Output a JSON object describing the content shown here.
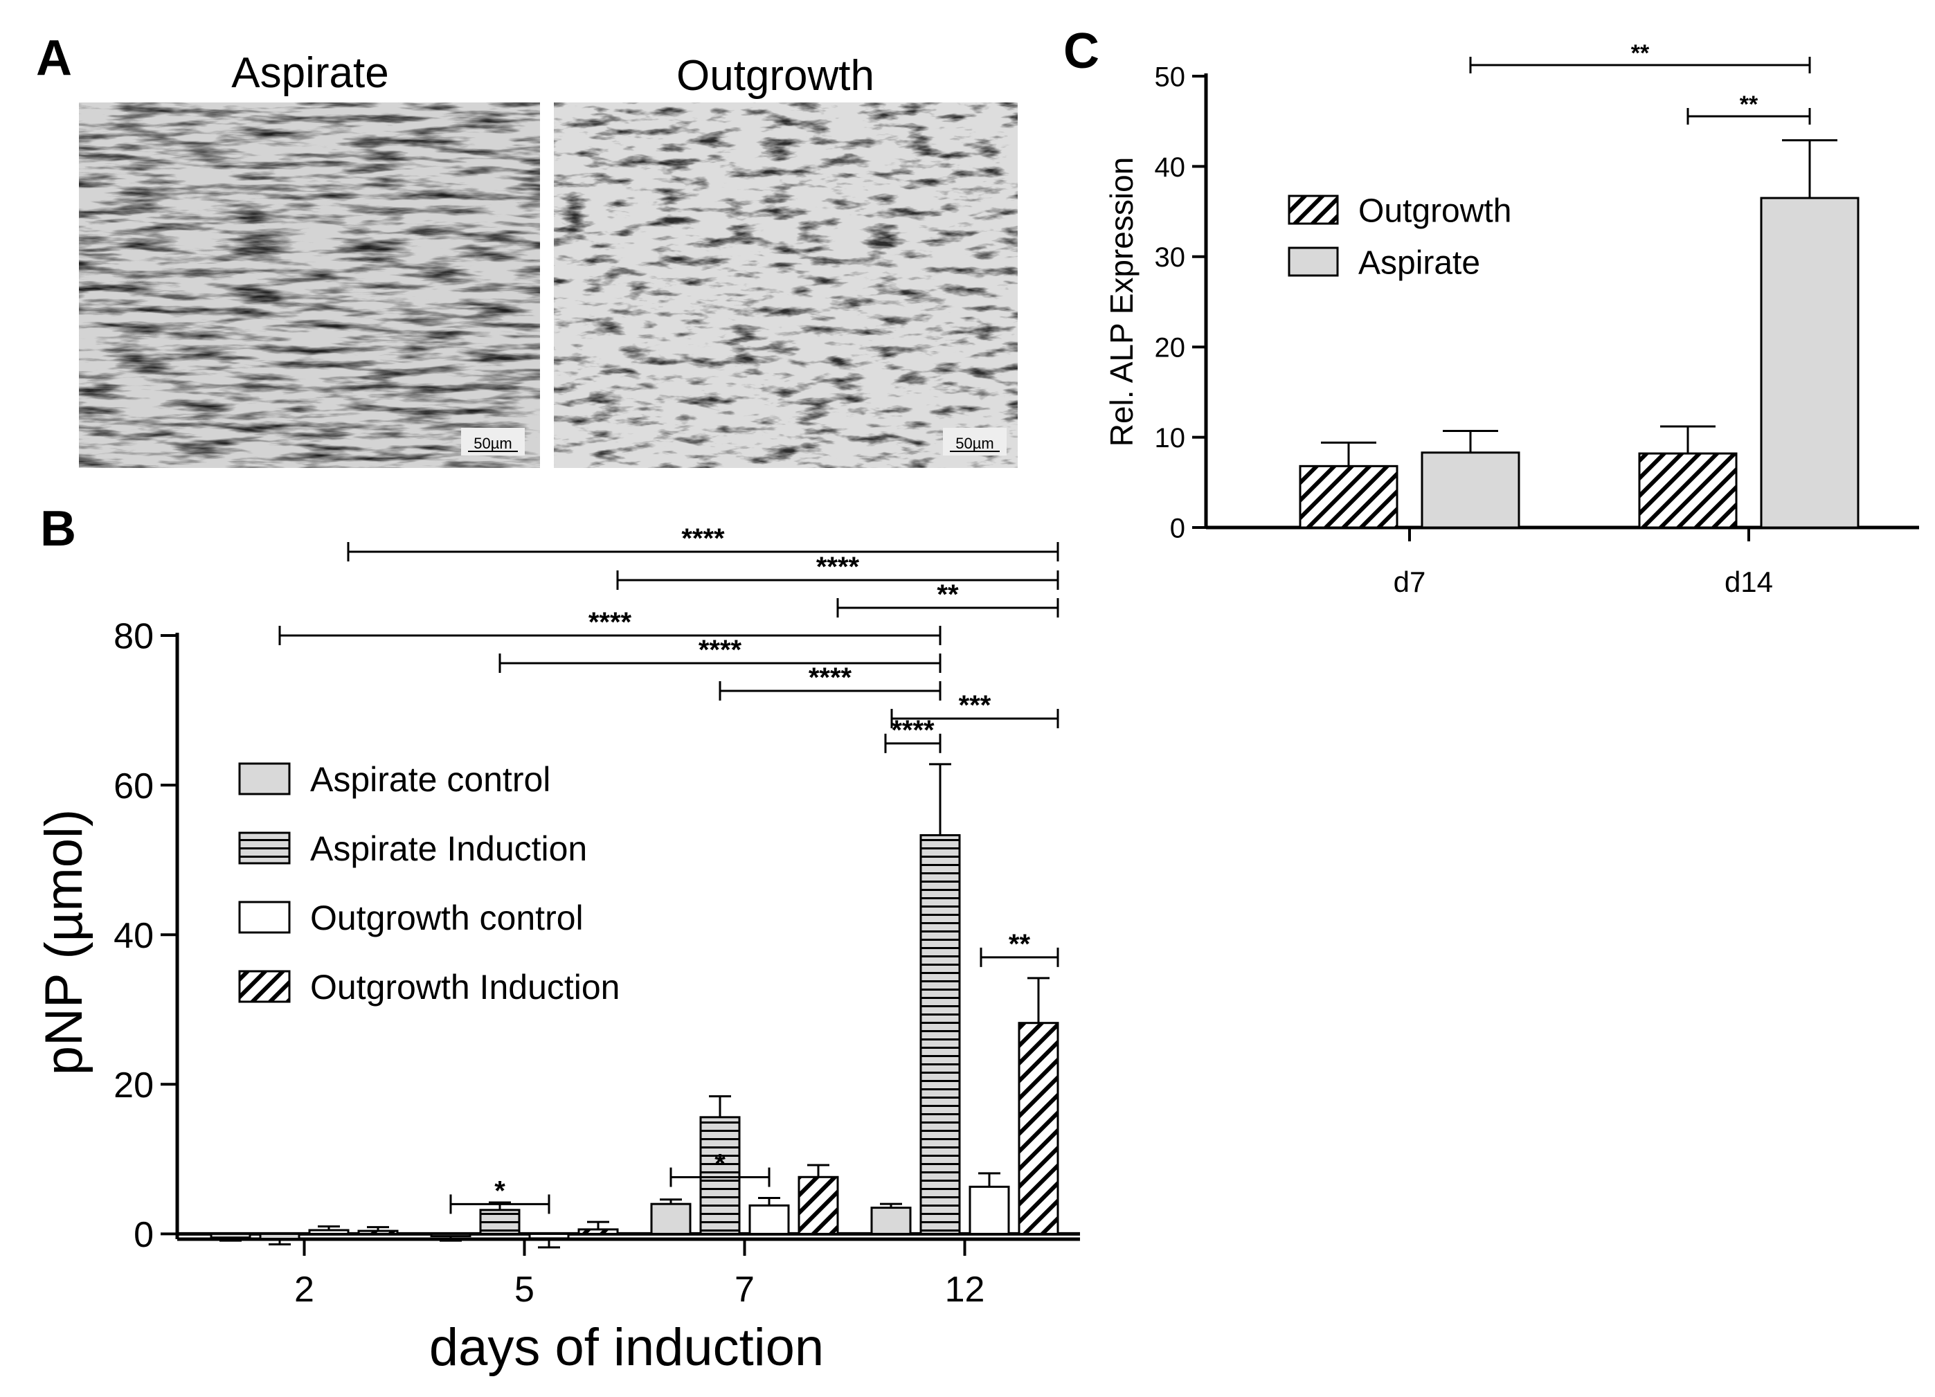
{
  "panels": {
    "a": {
      "letter": "A",
      "images": [
        {
          "title": "Aspirate",
          "scale_bar": "50µm"
        },
        {
          "title": "Outgrowth",
          "scale_bar": "50µm"
        }
      ]
    },
    "b": {
      "letter": "B"
    },
    "c": {
      "letter": "C"
    }
  },
  "chart_data": [
    {
      "panel": "B",
      "type": "bar",
      "categories": [
        "2",
        "5",
        "7",
        "12"
      ],
      "xlabel": "days of induction",
      "ylabel": "pNP (µmol)",
      "ylim": [
        -2,
        80
      ],
      "yticks": [
        0,
        20,
        40,
        60,
        80
      ],
      "legend_position": "center-left",
      "series": [
        {
          "name": "Aspirate control",
          "pattern": "solid",
          "fill": "#d9d9d9",
          "values": [
            -0.5,
            -0.3,
            4.0,
            3.5
          ],
          "errors": [
            0.4,
            0.6,
            0.6,
            0.5
          ]
        },
        {
          "name": "Aspirate Induction",
          "pattern": "horizontal",
          "fill": "#d9d9d9",
          "values": [
            -0.7,
            3.2,
            15.6,
            53.3
          ],
          "errors": [
            0.7,
            1.0,
            2.8,
            9.5
          ]
        },
        {
          "name": "Outgrowth control",
          "pattern": "solid",
          "fill": "#ffffff",
          "values": [
            0.5,
            -0.6,
            3.8,
            6.3
          ],
          "errors": [
            0.5,
            1.2,
            1.0,
            1.8
          ]
        },
        {
          "name": "Outgrowth Induction",
          "pattern": "diagonal",
          "fill": "#ffffff",
          "values": [
            0.4,
            0.6,
            7.6,
            28.2
          ],
          "errors": [
            0.5,
            1.0,
            1.6,
            6.0
          ]
        }
      ],
      "significance": [
        {
          "label": "****",
          "from": [
            0,
            2
          ],
          "to": [
            3,
            3
          ]
        },
        {
          "label": "****",
          "from": [
            1,
            3
          ],
          "to": [
            3,
            3
          ]
        },
        {
          "label": "**",
          "from": [
            2,
            3
          ],
          "to": [
            3,
            3
          ]
        },
        {
          "label": "****",
          "from": [
            0,
            1
          ],
          "to": [
            3,
            1
          ]
        },
        {
          "label": "****",
          "from": [
            1,
            1
          ],
          "to": [
            3,
            1
          ]
        },
        {
          "label": "****",
          "from": [
            2,
            1
          ],
          "to": [
            3,
            1
          ]
        },
        {
          "label": "***",
          "from": [
            3,
            1
          ],
          "to": [
            3,
            3
          ]
        },
        {
          "label": "****",
          "from": [
            3,
            0
          ],
          "to": [
            3,
            1
          ]
        },
        {
          "label": "**",
          "from": [
            3,
            2
          ],
          "to": [
            3,
            3
          ]
        },
        {
          "label": "*",
          "from": [
            1,
            0
          ],
          "to": [
            1,
            2
          ]
        },
        {
          "label": "*",
          "from": [
            2,
            0
          ],
          "to": [
            2,
            2
          ]
        }
      ]
    },
    {
      "panel": "C",
      "type": "bar",
      "categories": [
        "d7",
        "d14"
      ],
      "xlabel": "",
      "ylabel": "Rel. ALP Expression",
      "ylim": [
        0,
        50
      ],
      "yticks": [
        0,
        10,
        20,
        30,
        40,
        50
      ],
      "legend_position": "upper-left",
      "series": [
        {
          "name": "Outgrowth",
          "pattern": "diagonal",
          "fill": "#ffffff",
          "values": [
            6.8,
            8.2
          ],
          "errors": [
            2.6,
            3.0
          ]
        },
        {
          "name": "Aspirate",
          "pattern": "solid",
          "fill": "#d9d9d9",
          "values": [
            8.3,
            36.5
          ],
          "errors": [
            2.4,
            6.4
          ]
        }
      ],
      "significance": [
        {
          "label": "**",
          "from": [
            0,
            1
          ],
          "to": [
            1,
            1
          ]
        },
        {
          "label": "**",
          "from": [
            1,
            0
          ],
          "to": [
            1,
            1
          ]
        }
      ]
    }
  ]
}
